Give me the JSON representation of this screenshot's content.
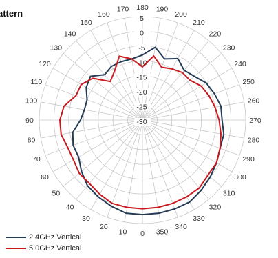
{
  "title": "attern",
  "chart_data": {
    "type": "polar",
    "angle_labels": [
      "0",
      "10",
      "20",
      "30",
      "40",
      "50",
      "60",
      "70",
      "80",
      "90",
      "100",
      "110",
      "120",
      "130",
      "140",
      "150",
      "160",
      "170",
      "180",
      "190",
      "200",
      "210",
      "220",
      "230",
      "240",
      "250",
      "260",
      "270",
      "280",
      "290",
      "300",
      "310",
      "320",
      "330",
      "340",
      "350"
    ],
    "radial_ticks": [
      5,
      0,
      -5,
      -10,
      -15,
      -20,
      -25,
      -30
    ],
    "rlim": [
      -30,
      5
    ],
    "series": [
      {
        "name": "2.4GHz Vertical",
        "color": "#243a55",
        "angles": [
          0,
          10,
          20,
          30,
          40,
          50,
          60,
          70,
          80,
          90,
          100,
          110,
          120,
          130,
          140,
          150,
          160,
          170,
          180,
          190,
          200,
          210,
          220,
          230,
          240,
          250,
          260,
          270,
          280,
          290,
          300,
          310,
          320,
          330,
          340,
          350
        ],
        "values": [
          2,
          2,
          1,
          0,
          -1,
          -3,
          -5,
          -5,
          -6,
          -9,
          -10,
          -10,
          -8,
          -7,
          -10,
          -9,
          -9,
          -9,
          -8,
          -5,
          -8,
          -6,
          -8,
          -7,
          -5,
          -4,
          -3,
          -3,
          -2,
          -2,
          -1,
          0,
          1,
          2,
          2,
          2
        ]
      },
      {
        "name": "5.0GHz Vertical",
        "color": "#c8191e",
        "angles": [
          0,
          10,
          20,
          30,
          40,
          50,
          60,
          70,
          80,
          90,
          100,
          110,
          120,
          130,
          140,
          150,
          160,
          170,
          180,
          190,
          200,
          210,
          220,
          230,
          240,
          250,
          260,
          270,
          280,
          290,
          300,
          310,
          320,
          330,
          340,
          350
        ],
        "values": [
          0,
          0,
          0,
          -1,
          -2,
          -2,
          -3,
          -3,
          -2,
          -2,
          -3,
          -6,
          -6,
          -8,
          -13,
          -11,
          -7,
          -9,
          -12,
          -8,
          -11,
          -10,
          -9,
          -9,
          -7,
          -6,
          -5,
          -4,
          -3,
          -2,
          -1,
          -1,
          0,
          0,
          0,
          0
        ]
      }
    ]
  },
  "legend": {
    "items": [
      {
        "label": "2.4GHz Vertical",
        "color": "#243a55"
      },
      {
        "label": "5.0GHz Vertical",
        "color": "#c8191e"
      }
    ]
  }
}
